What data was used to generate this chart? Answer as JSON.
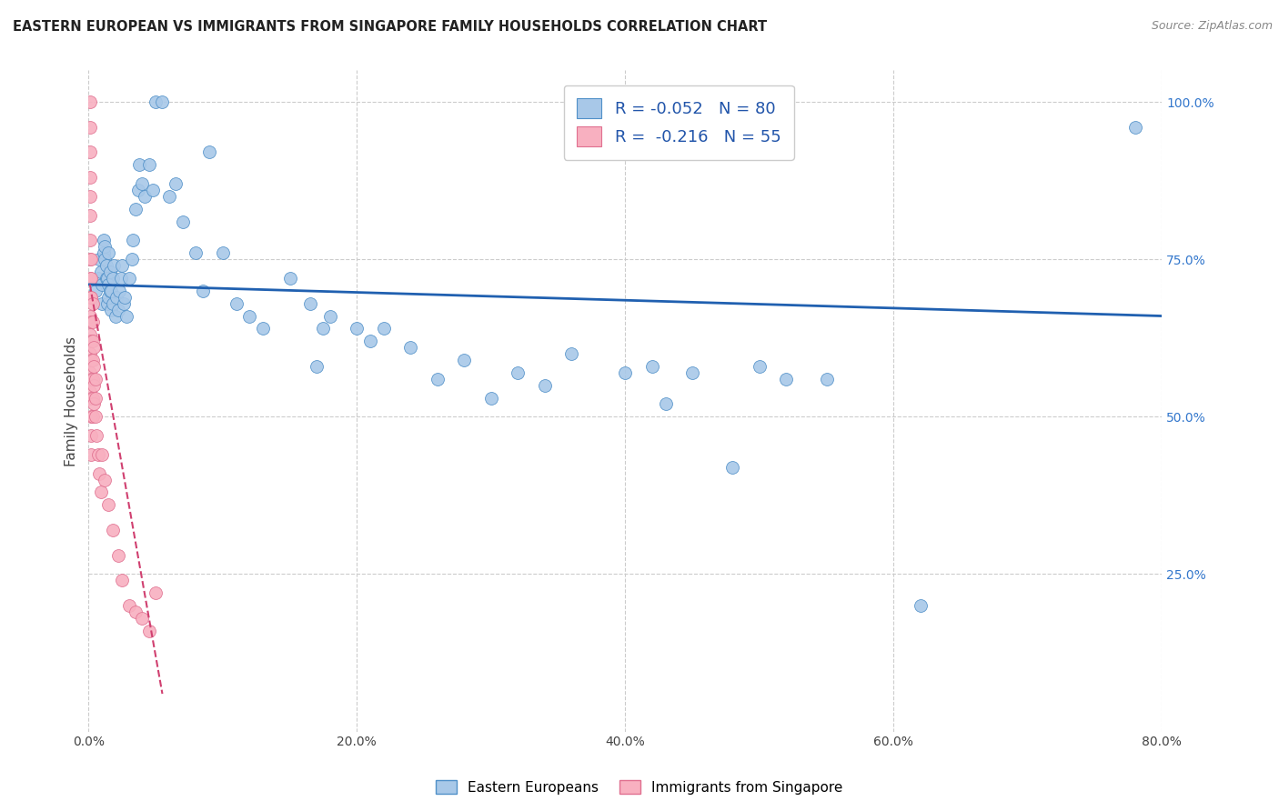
{
  "title": "EASTERN EUROPEAN VS IMMIGRANTS FROM SINGAPORE FAMILY HOUSEHOLDS CORRELATION CHART",
  "source": "Source: ZipAtlas.com",
  "ylabel": "Family Households",
  "right_yticks": [
    "100.0%",
    "75.0%",
    "50.0%",
    "25.0%"
  ],
  "right_ytick_vals": [
    1.0,
    0.75,
    0.5,
    0.25
  ],
  "legend_blue_r": "R = -0.052",
  "legend_blue_n": "N = 80",
  "legend_pink_r": "R =  -0.216",
  "legend_pink_n": "N = 55",
  "blue_color": "#a8c8e8",
  "blue_edge_color": "#5090c8",
  "blue_line_color": "#2060b0",
  "pink_color": "#f8b0c0",
  "pink_edge_color": "#e07090",
  "pink_line_color": "#d04070",
  "blue_scatter_x": [
    0.005,
    0.007,
    0.008,
    0.009,
    0.01,
    0.01,
    0.011,
    0.011,
    0.012,
    0.012,
    0.013,
    0.013,
    0.014,
    0.014,
    0.015,
    0.015,
    0.015,
    0.016,
    0.016,
    0.017,
    0.017,
    0.018,
    0.018,
    0.019,
    0.02,
    0.021,
    0.022,
    0.023,
    0.024,
    0.025,
    0.026,
    0.027,
    0.028,
    0.03,
    0.032,
    0.033,
    0.035,
    0.037,
    0.038,
    0.04,
    0.042,
    0.045,
    0.048,
    0.05,
    0.055,
    0.06,
    0.065,
    0.07,
    0.08,
    0.085,
    0.09,
    0.1,
    0.11,
    0.12,
    0.13,
    0.15,
    0.165,
    0.17,
    0.175,
    0.18,
    0.2,
    0.21,
    0.22,
    0.24,
    0.26,
    0.28,
    0.3,
    0.32,
    0.34,
    0.36,
    0.4,
    0.42,
    0.43,
    0.45,
    0.48,
    0.5,
    0.52,
    0.55,
    0.62,
    0.78
  ],
  "blue_scatter_y": [
    0.7,
    0.72,
    0.75,
    0.73,
    0.68,
    0.71,
    0.76,
    0.78,
    0.75,
    0.77,
    0.72,
    0.74,
    0.68,
    0.72,
    0.69,
    0.71,
    0.76,
    0.7,
    0.73,
    0.67,
    0.7,
    0.68,
    0.72,
    0.74,
    0.66,
    0.69,
    0.67,
    0.7,
    0.72,
    0.74,
    0.68,
    0.69,
    0.66,
    0.72,
    0.75,
    0.78,
    0.83,
    0.86,
    0.9,
    0.87,
    0.85,
    0.9,
    0.86,
    1.0,
    1.0,
    0.85,
    0.87,
    0.81,
    0.76,
    0.7,
    0.92,
    0.76,
    0.68,
    0.66,
    0.64,
    0.72,
    0.68,
    0.58,
    0.64,
    0.66,
    0.64,
    0.62,
    0.64,
    0.61,
    0.56,
    0.59,
    0.53,
    0.57,
    0.55,
    0.6,
    0.57,
    0.58,
    0.52,
    0.57,
    0.42,
    0.58,
    0.56,
    0.56,
    0.2,
    0.96
  ],
  "pink_scatter_x": [
    0.001,
    0.001,
    0.001,
    0.001,
    0.001,
    0.001,
    0.001,
    0.001,
    0.001,
    0.001,
    0.001,
    0.001,
    0.001,
    0.001,
    0.001,
    0.002,
    0.002,
    0.002,
    0.002,
    0.002,
    0.002,
    0.002,
    0.002,
    0.002,
    0.002,
    0.002,
    0.003,
    0.003,
    0.003,
    0.003,
    0.003,
    0.003,
    0.003,
    0.004,
    0.004,
    0.004,
    0.004,
    0.005,
    0.005,
    0.005,
    0.006,
    0.007,
    0.008,
    0.009,
    0.01,
    0.012,
    0.015,
    0.018,
    0.022,
    0.025,
    0.03,
    0.035,
    0.04,
    0.045,
    0.05
  ],
  "pink_scatter_y": [
    1.0,
    0.96,
    0.92,
    0.88,
    0.85,
    0.82,
    0.78,
    0.75,
    0.72,
    0.69,
    0.66,
    0.63,
    0.6,
    0.57,
    0.54,
    0.75,
    0.72,
    0.69,
    0.65,
    0.62,
    0.59,
    0.56,
    0.53,
    0.5,
    0.47,
    0.44,
    0.68,
    0.65,
    0.62,
    0.59,
    0.56,
    0.53,
    0.5,
    0.61,
    0.58,
    0.55,
    0.52,
    0.56,
    0.53,
    0.5,
    0.47,
    0.44,
    0.41,
    0.38,
    0.44,
    0.4,
    0.36,
    0.32,
    0.28,
    0.24,
    0.2,
    0.19,
    0.18,
    0.16,
    0.22
  ],
  "blue_trend_x": [
    0.0,
    0.8
  ],
  "blue_trend_y": [
    0.71,
    0.66
  ],
  "pink_trend_x": [
    0.001,
    0.055
  ],
  "pink_trend_y": [
    0.71,
    0.06
  ],
  "xlim": [
    0.0,
    0.8
  ],
  "ylim": [
    0.0,
    1.05
  ],
  "xtick_vals": [
    0.0,
    0.2,
    0.4,
    0.6,
    0.8
  ],
  "xtick_labels": [
    "0.0%",
    "20.0%",
    "40.0%",
    "60.0%",
    "80.0%"
  ],
  "grid_color": "#cccccc",
  "background_color": "#ffffff",
  "legend_label_blue": "Eastern Europeans",
  "legend_label_pink": "Immigrants from Singapore"
}
